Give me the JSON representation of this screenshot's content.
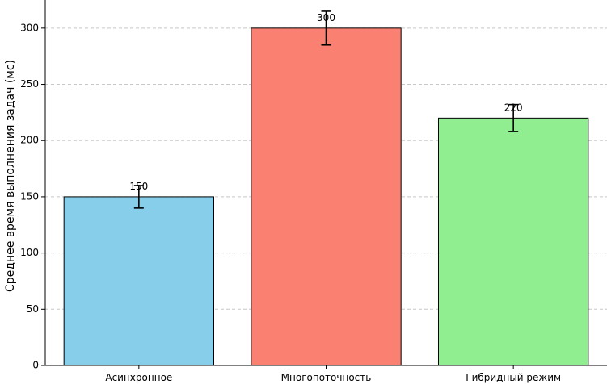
{
  "chart_data": {
    "type": "bar",
    "title": "",
    "xlabel": "",
    "ylabel": "Среднее время выполнения задач (мс)",
    "categories": [
      "Асинхронное",
      "Многопоточность",
      "Гибридный режим"
    ],
    "values": [
      150,
      300,
      220
    ],
    "errors": [
      10,
      15,
      12
    ],
    "data_labels": [
      "150",
      "300",
      "220"
    ],
    "colors": [
      "#87ceeb",
      "#fa8072",
      "#90ee90"
    ],
    "ylim": [
      0,
      325
    ],
    "yticks": [
      0,
      50,
      100,
      150,
      200,
      250,
      300
    ],
    "ytick_labels": [
      "0",
      "50",
      "100",
      "150",
      "200",
      "250",
      "300"
    ],
    "grid": "y-dashed"
  }
}
